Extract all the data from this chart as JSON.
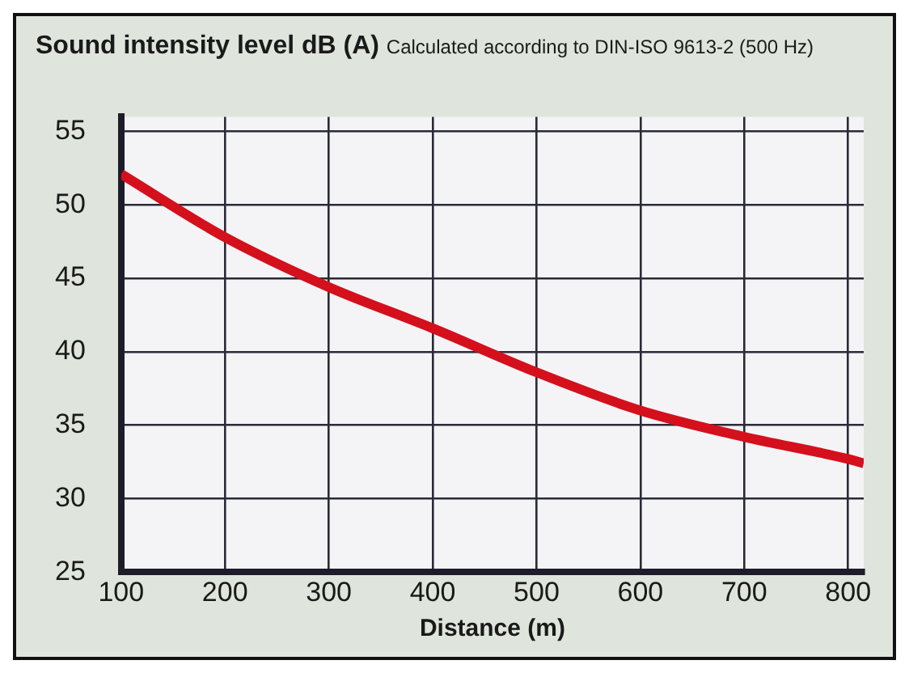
{
  "chart_data": {
    "type": "line",
    "title": "Sound intensity level dB (A)",
    "subtitle": "Calculated according to DIN-ISO 9613-2 (500 Hz)",
    "xlabel": "Distance (m)",
    "x": [
      100,
      200,
      300,
      400,
      500,
      600,
      700,
      800,
      815
    ],
    "series": [
      {
        "color": "#d4101c",
        "values": [
          52.1,
          47.8,
          44.4,
          41.6,
          38.6,
          36.0,
          34.2,
          32.7,
          32.4
        ]
      }
    ],
    "xlim": [
      100,
      815
    ],
    "xticks": [
      100,
      200,
      300,
      400,
      500,
      600,
      700,
      800
    ],
    "ylim": [
      25,
      56
    ],
    "yticks": [
      25,
      30,
      35,
      40,
      45,
      50,
      55
    ],
    "grid": true,
    "legend": false,
    "marker": "none",
    "line_style": "solid"
  }
}
